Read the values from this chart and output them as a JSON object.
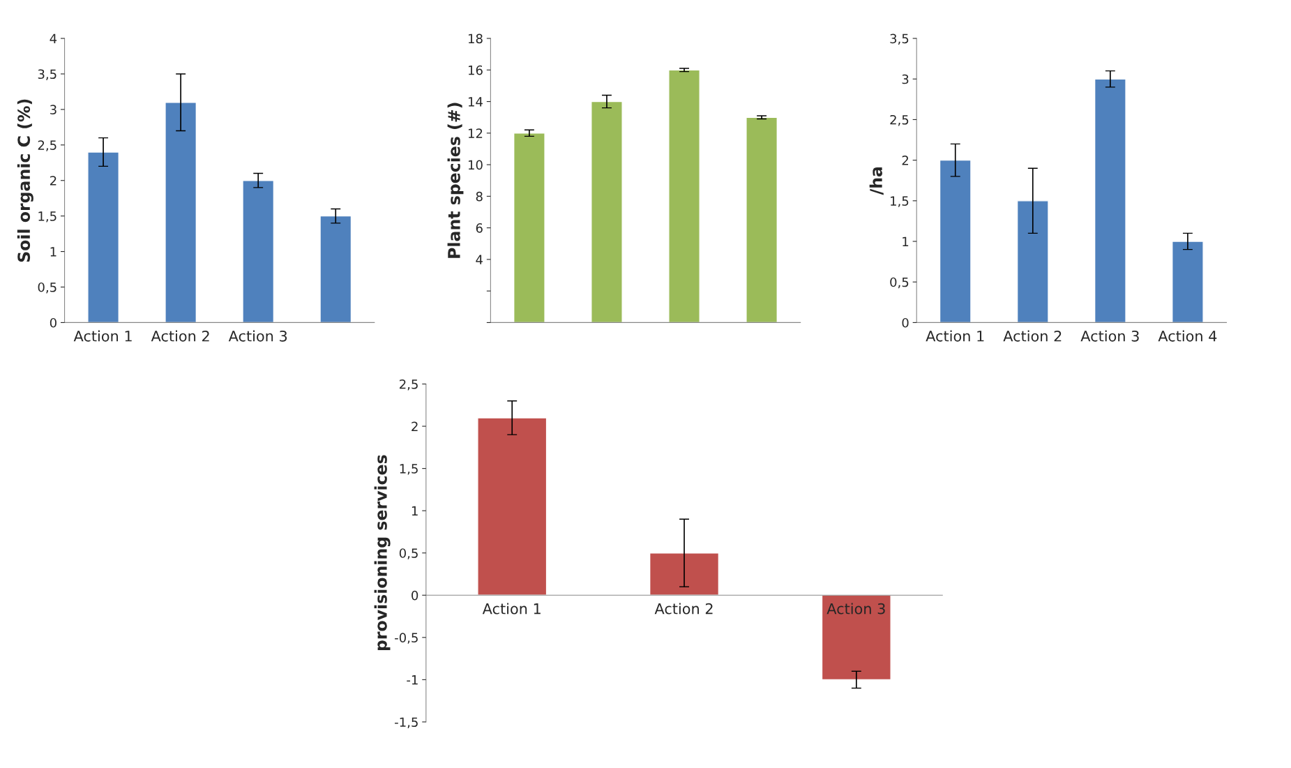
{
  "chart_data": [
    {
      "type": "bar",
      "ylabel": "Soil organic C (%)",
      "categories": [
        "Action 1",
        "Action 2",
        "Action 3",
        null
      ],
      "series": [
        {
          "color": "#4f81bd",
          "values": [
            2.4,
            3.1,
            2.0,
            1.5
          ],
          "errors": [
            0.2,
            0.4,
            0.1,
            0.1
          ]
        }
      ],
      "ylim": [
        0,
        4
      ],
      "yticks": [
        0,
        {
          "value": 0.5,
          "label": "0,5"
        },
        1,
        {
          "value": 1.5,
          "label": "1,5"
        },
        2,
        {
          "value": 2.5,
          "label": "2,5"
        },
        3,
        {
          "value": 3.5,
          "label": "3,5"
        },
        4
      ],
      "grid": false,
      "legend": false
    },
    {
      "type": "bar",
      "ylabel": "Plant species (#)",
      "categories": [
        null,
        null,
        null,
        null
      ],
      "series": [
        {
          "color": "#9bbb59",
          "values": [
            12,
            14,
            16,
            13
          ],
          "errors": [
            0.2,
            0.4,
            0.1,
            0.1
          ]
        }
      ],
      "ylim": [
        0,
        18
      ],
      "yticks": [
        {
          "value": 0,
          "label": null
        },
        {
          "value": 2,
          "label": null
        },
        4,
        6,
        8,
        10,
        12,
        14,
        16,
        18
      ],
      "tick_labels": "y",
      "grid": false,
      "legend": false
    },
    {
      "type": "bar",
      "ylabel": "/ha",
      "categories": [
        "Action 1",
        "Action 2",
        "Action 3",
        "Action 4"
      ],
      "series": [
        {
          "color": "#4f81bd",
          "values": [
            2.0,
            1.5,
            3.0,
            1.0
          ],
          "errors": [
            0.2,
            0.4,
            0.1,
            0.1
          ]
        }
      ],
      "ylim": [
        0,
        3.5
      ],
      "yticks": [
        0,
        {
          "value": 0.5,
          "label": "0,5"
        },
        1,
        {
          "value": 1.5,
          "label": "1,5"
        },
        2,
        {
          "value": 2.5,
          "label": "2,5"
        },
        3,
        {
          "value": 3.5,
          "label": "3,5"
        }
      ],
      "grid": false,
      "legend": false
    },
    {
      "type": "bar",
      "ylabel": "provisioning services",
      "categories": [
        "Action 1",
        "Action 2",
        "Action 3"
      ],
      "series": [
        {
          "color": "#c0504d",
          "values": [
            2.1,
            0.5,
            -1.0
          ],
          "errors": [
            0.2,
            0.4,
            0.1
          ]
        }
      ],
      "ylim": [
        -1.5,
        2.5
      ],
      "yticks": [
        {
          "value": -1.5,
          "label": "-1,5"
        },
        -1,
        {
          "value": -0.5,
          "label": "-0,5"
        },
        0,
        {
          "value": 0.5,
          "label": "0,5"
        },
        1,
        {
          "value": 1.5,
          "label": "1,5"
        },
        2,
        {
          "value": 2.5,
          "label": "2,5"
        }
      ],
      "grid": false,
      "legend": false
    }
  ]
}
